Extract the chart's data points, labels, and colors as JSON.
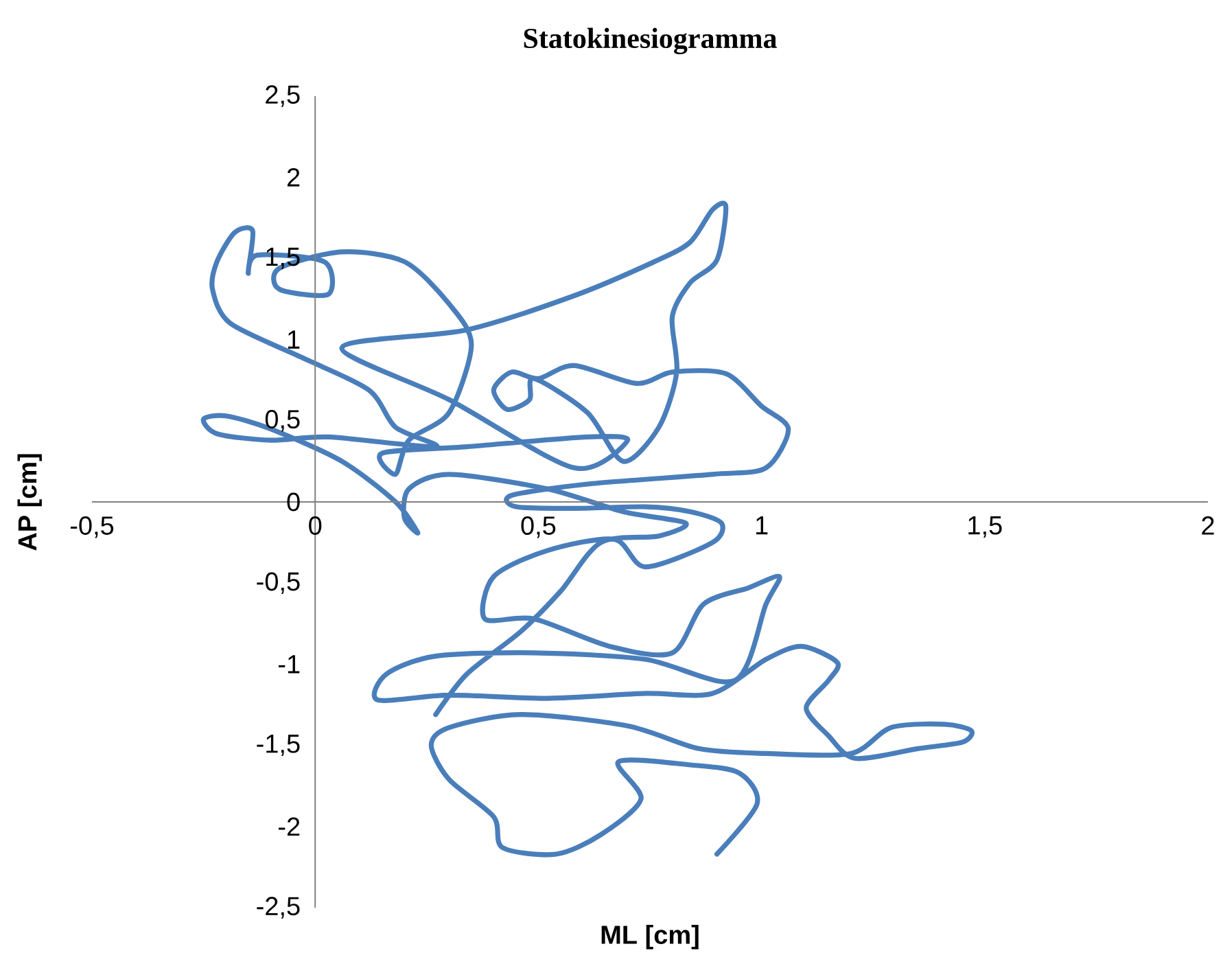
{
  "chart_data": {
    "type": "line",
    "title": "Statokinesiogramma",
    "xlabel": "ML [cm]",
    "ylabel": "AP [cm]",
    "color": "#4a7ebb",
    "xlim": [
      -0.5,
      2
    ],
    "ylim": [
      -2.5,
      2.5
    ],
    "xticks": [
      {
        "value": -0.5,
        "label": "-0,5"
      },
      0,
      {
        "value": 0.5,
        "label": "0,5"
      },
      1,
      {
        "value": 1.5,
        "label": "1,5"
      },
      2
    ],
    "yticks": [
      {
        "value": -2.5,
        "label": "-2,5"
      },
      -2,
      {
        "value": -1.5,
        "label": "-1,5"
      },
      -1,
      {
        "value": -0.5,
        "label": "-0,5"
      },
      0,
      {
        "value": 0.5,
        "label": "0,5"
      },
      1,
      {
        "value": 1.5,
        "label": "1,5"
      },
      2,
      {
        "value": 2.5,
        "label": "2,5"
      }
    ],
    "x": [
      0.9,
      0.99,
      0.95,
      0.84,
      0.68,
      0.73,
      0.64,
      0.54,
      0.42,
      0.4,
      0.3,
      0.26,
      0.3,
      0.46,
      0.7,
      0.86,
      1.01,
      1.2,
      1.29,
      1.41,
      1.47,
      1.45,
      1.35,
      1.21,
      1.15,
      1.1,
      1.15,
      1.17,
      1.09,
      1.01,
      0.89,
      0.74,
      0.52,
      0.3,
      0.14,
      0.16,
      0.27,
      0.49,
      0.74,
      0.94,
      1.01,
      1.04,
      0.97,
      0.87,
      0.8,
      0.66,
      0.49,
      0.38,
      0.4,
      0.52,
      0.67,
      0.74,
      0.89,
      0.91,
      0.84,
      0.74,
      0.58,
      0.45,
      0.44,
      0.61,
      0.89,
      1.01,
      1.06,
      1.0,
      0.92,
      0.8,
      0.72,
      0.58,
      0.5,
      0.44,
      0.4,
      0.43,
      0.48,
      0.49,
      0.61,
      0.69,
      0.77,
      0.81,
      0.8,
      0.84,
      0.9,
      0.92,
      0.89,
      0.84,
      0.76,
      0.58,
      0.34,
      0.06,
      0.3,
      0.58,
      0.7,
      0.61,
      0.34,
      0.15,
      0.18,
      0.21,
      0.3,
      0.35,
      0.3,
      0.2,
      0.06,
      -0.08,
      -0.08,
      0.03,
      0.02,
      -0.13,
      -0.15,
      -0.14,
      -0.18,
      -0.22,
      -0.23,
      -0.19,
      -0.03,
      0.12,
      0.18,
      0.27,
      0.03,
      -0.1,
      -0.22,
      -0.25,
      -0.2,
      -0.1,
      0.06,
      0.18,
      0.23,
      0.2,
      0.21,
      0.3,
      0.52,
      0.69,
      0.83,
      0.77,
      0.64,
      0.55,
      0.46,
      0.34,
      0.27
    ],
    "values": [
      -2.17,
      -1.86,
      -1.67,
      -1.62,
      -1.6,
      -1.83,
      -2.05,
      -2.17,
      -2.13,
      -1.94,
      -1.71,
      -1.5,
      -1.39,
      -1.31,
      -1.38,
      -1.52,
      -1.55,
      -1.55,
      -1.39,
      -1.37,
      -1.41,
      -1.48,
      -1.52,
      -1.58,
      -1.44,
      -1.27,
      -1.1,
      -0.99,
      -0.89,
      -0.97,
      -1.18,
      -1.18,
      -1.21,
      -1.19,
      -1.22,
      -1.06,
      -0.95,
      -0.93,
      -0.97,
      -1.1,
      -0.63,
      -0.46,
      -0.53,
      -0.63,
      -0.93,
      -0.89,
      -0.72,
      -0.72,
      -0.46,
      -0.3,
      -0.23,
      -0.4,
      -0.25,
      -0.13,
      -0.06,
      -0.03,
      -0.04,
      -0.03,
      0.04,
      0.11,
      0.17,
      0.21,
      0.45,
      0.59,
      0.79,
      0.8,
      0.73,
      0.84,
      0.76,
      0.8,
      0.69,
      0.57,
      0.63,
      0.76,
      0.55,
      0.25,
      0.46,
      0.8,
      1.14,
      1.35,
      1.49,
      1.82,
      1.8,
      1.6,
      1.48,
      1.27,
      1.06,
      0.95,
      0.63,
      0.21,
      0.38,
      0.4,
      0.34,
      0.3,
      0.17,
      0.38,
      0.55,
      0.97,
      1.22,
      1.48,
      1.54,
      1.44,
      1.31,
      1.28,
      1.48,
      1.52,
      1.41,
      1.67,
      1.66,
      1.48,
      1.31,
      1.1,
      0.89,
      0.69,
      0.46,
      0.34,
      0.4,
      0.38,
      0.42,
      0.51,
      0.53,
      0.45,
      0.25,
      0.0,
      -0.19,
      -0.1,
      0.08,
      0.17,
      0.08,
      -0.06,
      -0.13,
      -0.21,
      -0.25,
      -0.55,
      -0.8,
      -1.06,
      -1.31
    ]
  }
}
